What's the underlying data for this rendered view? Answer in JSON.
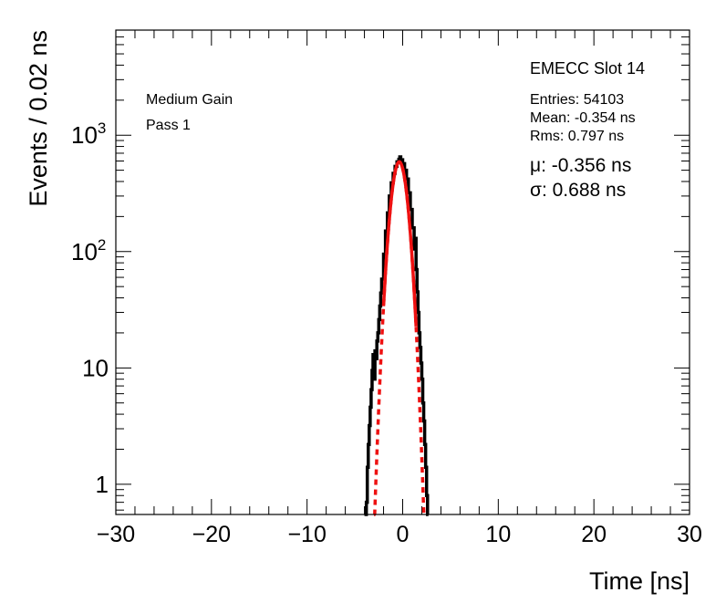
{
  "chart_data": {
    "type": "histogram",
    "xlabel": "Time [ns]",
    "ylabel": "Events / 0.02 ns",
    "xlim": [
      -30,
      30
    ],
    "ylim": [
      0.55,
      8000
    ],
    "yscale": "log",
    "x_ticks": [
      -30,
      -20,
      -10,
      0,
      10,
      20,
      30
    ],
    "x_tick_labels": [
      "−30",
      "−20",
      "−10",
      "0",
      "10",
      "20",
      "30"
    ],
    "y_ticks": [
      {
        "value": 1,
        "base": "1",
        "exp": ""
      },
      {
        "value": 10,
        "base": "10",
        "exp": ""
      },
      {
        "value": 100,
        "base": "10",
        "exp": "2"
      },
      {
        "value": 1000,
        "base": "10",
        "exp": "3"
      }
    ],
    "text_left": [
      "Medium Gain",
      "Pass 1"
    ],
    "stats": {
      "title": "EMECC Slot 14",
      "entries": "Entries: 54103",
      "mean": "Mean: -0.354 ns",
      "rms": "Rms: 0.797 ns"
    },
    "fit": {
      "mu_label": "μ: -0.356 ns",
      "sigma_label": "σ: 0.688 ns",
      "mu": -0.356,
      "sigma": 0.688,
      "amplitude": 590,
      "solid_range": [
        -2.0,
        1.4
      ],
      "color": "#ee1111"
    },
    "histogram": {
      "color": "#000000",
      "points": [
        [
          -4.0,
          0.4
        ],
        [
          -3.8,
          0.7
        ],
        [
          -3.7,
          1.4
        ],
        [
          -3.6,
          2.2
        ],
        [
          -3.5,
          3.2
        ],
        [
          -3.4,
          4.6
        ],
        [
          -3.3,
          6.5
        ],
        [
          -3.2,
          9.5
        ],
        [
          -3.1,
          13
        ],
        [
          -3.0,
          8
        ],
        [
          -2.9,
          14
        ],
        [
          -2.8,
          12
        ],
        [
          -2.7,
          17
        ],
        [
          -2.6,
          20
        ],
        [
          -2.5,
          26
        ],
        [
          -2.4,
          34
        ],
        [
          -2.3,
          44
        ],
        [
          -2.2,
          58
        ],
        [
          -2.0,
          95
        ],
        [
          -1.8,
          150
        ],
        [
          -1.6,
          215
        ],
        [
          -1.4,
          300
        ],
        [
          -1.2,
          390
        ],
        [
          -1.0,
          470
        ],
        [
          -0.8,
          540
        ],
        [
          -0.6,
          590
        ],
        [
          -0.4,
          620
        ],
        [
          -0.3,
          650
        ],
        [
          -0.2,
          615
        ],
        [
          0.0,
          570
        ],
        [
          0.2,
          500
        ],
        [
          0.4,
          420
        ],
        [
          0.6,
          320
        ],
        [
          0.8,
          230
        ],
        [
          1.0,
          160
        ],
        [
          1.2,
          105
        ],
        [
          1.3,
          130
        ],
        [
          1.4,
          70
        ],
        [
          1.5,
          45
        ],
        [
          1.6,
          30
        ],
        [
          1.7,
          20
        ],
        [
          1.8,
          15
        ],
        [
          1.9,
          11
        ],
        [
          2.0,
          8
        ],
        [
          2.1,
          5
        ],
        [
          2.2,
          3.5
        ],
        [
          2.3,
          2.2
        ],
        [
          2.4,
          1.4
        ],
        [
          2.5,
          0.8
        ],
        [
          2.6,
          0.4
        ]
      ]
    }
  }
}
